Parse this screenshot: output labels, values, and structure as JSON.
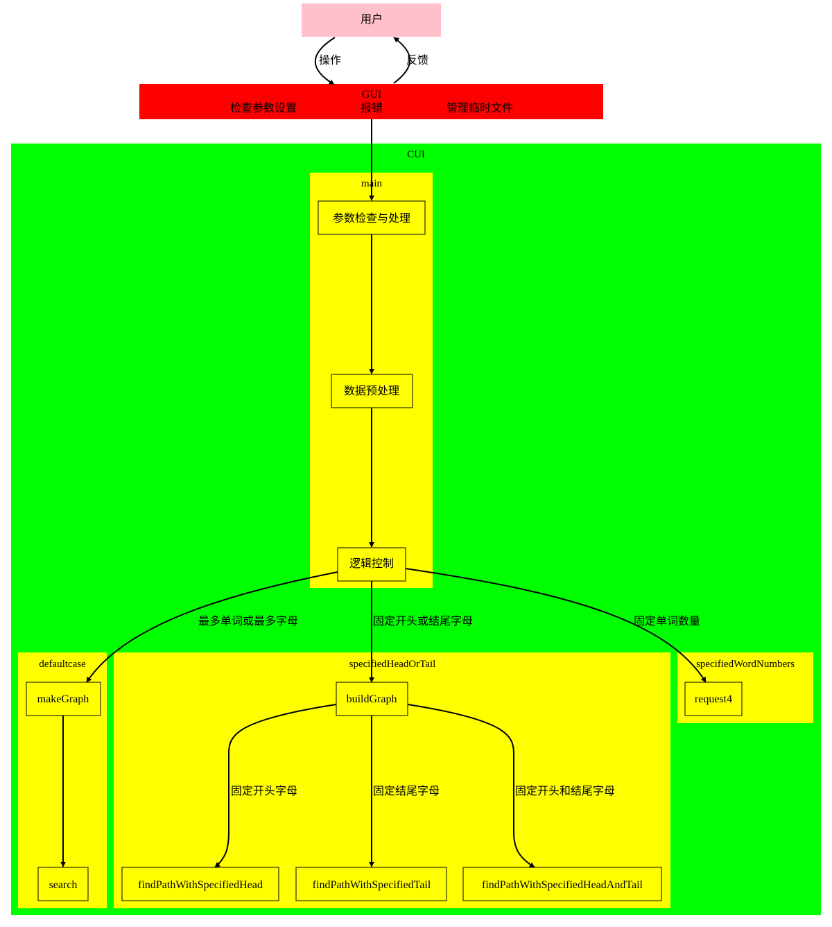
{
  "colors": {
    "user_fill": "#ffc0cb",
    "gui_fill": "#ff0000",
    "cui_fill": "#00ff00",
    "cluster_fill": "#ffff00",
    "stroke": "#000000"
  },
  "nodes": {
    "user": "用户",
    "gui": {
      "title": "GUI",
      "items": [
        "检查参数设置",
        "报错",
        "管理临时文件"
      ]
    },
    "param_check": "参数检查与处理",
    "preprocess": "数据预处理",
    "logic": "逻辑控制",
    "make_graph": "makeGraph",
    "search": "search",
    "build_graph": "buildGraph",
    "request4": "request4",
    "find_head": "findPathWithSpecifiedHead",
    "find_tail": "findPathWithSpecifiedTail",
    "find_head_tail": "findPathWithSpecifiedHeadAndTail"
  },
  "clusters": {
    "cui": "CUI",
    "main": "main",
    "defaultcase": "defaultcase",
    "specified_head_or_tail": "specifiedHeadOrTail",
    "specified_word_numbers": "specifiedWordNumbers"
  },
  "edges": {
    "operate": "操作",
    "feedback": "反馈",
    "most_words_or_letters": "最多单词或最多字母",
    "fixed_head_or_tail": "固定开头或结尾字母",
    "fixed_word_count": "固定单词数量",
    "fixed_head": "固定开头字母",
    "fixed_tail": "固定结尾字母",
    "fixed_head_and_tail": "固定开头和结尾字母"
  }
}
